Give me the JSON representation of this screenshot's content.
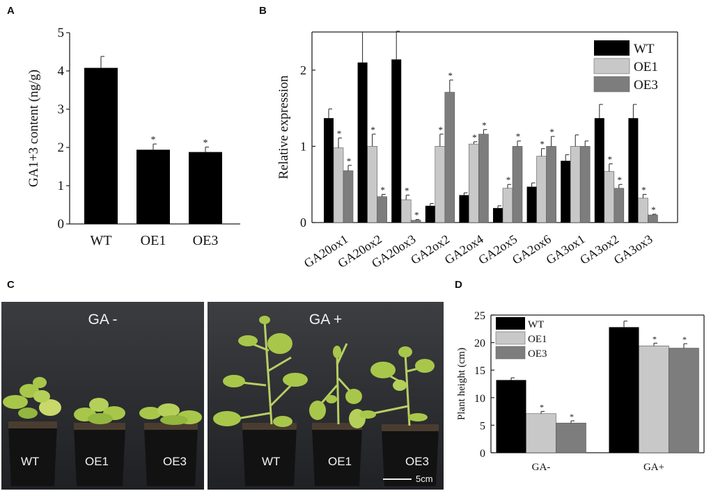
{
  "panels": {
    "a": "A",
    "b": "B",
    "c": "C",
    "d": "D"
  },
  "colors": {
    "wt": "#000000",
    "oe1": "#c8c8c8",
    "oe3": "#7d7d7d"
  },
  "significance_mark": "*",
  "chart_data": [
    {
      "id": "A",
      "type": "bar",
      "title": "",
      "xlabel": "",
      "ylabel": "GA1+3 content (ng/g)",
      "ylim": [
        0,
        5
      ],
      "yticks": [
        0,
        1,
        2,
        3,
        4,
        5
      ],
      "categories": [
        "WT",
        "OE1",
        "OE3"
      ],
      "values": [
        4.08,
        1.94,
        1.88
      ],
      "errors": [
        0.3,
        0.15,
        0.13
      ],
      "significant": [
        false,
        true,
        true
      ]
    },
    {
      "id": "B",
      "type": "bar",
      "title": "",
      "xlabel": "",
      "ylabel": "Relative expression",
      "ylim": [
        0,
        2.5
      ],
      "yticks": [
        0,
        1,
        2
      ],
      "legend_position": "top-right",
      "categories": [
        "GA20ox1",
        "GA20ox2",
        "GA20ox3",
        "GA2ox2",
        "GA2ox4",
        "GA2ox5",
        "GA2ox6",
        "GA3ox1",
        "GA3ox2",
        "GA3ox3"
      ],
      "series": [
        {
          "name": "WT",
          "values": [
            1.37,
            2.1,
            2.14,
            0.22,
            0.36,
            0.19,
            0.47,
            0.81,
            1.37,
            1.37
          ],
          "errors": [
            0.12,
            0.4,
            0.37,
            0.03,
            0.03,
            0.03,
            0.05,
            0.08,
            0.18,
            0.18
          ],
          "significant": [
            false,
            false,
            false,
            false,
            false,
            false,
            false,
            false,
            false,
            false
          ]
        },
        {
          "name": "OE1",
          "values": [
            0.98,
            1.0,
            0.3,
            1.0,
            1.03,
            0.45,
            0.87,
            1.0,
            0.67,
            0.32
          ],
          "errors": [
            0.13,
            0.16,
            0.06,
            0.16,
            0.03,
            0.05,
            0.1,
            0.15,
            0.1,
            0.05
          ],
          "significant": [
            true,
            true,
            true,
            true,
            true,
            true,
            true,
            false,
            true,
            true
          ]
        },
        {
          "name": "OE3",
          "values": [
            0.68,
            0.34,
            0.03,
            1.71,
            1.16,
            1.0,
            1.0,
            1.0,
            0.45,
            0.1
          ],
          "errors": [
            0.07,
            0.03,
            0.01,
            0.16,
            0.06,
            0.07,
            0.13,
            0.07,
            0.05,
            0.01
          ],
          "significant": [
            true,
            true,
            true,
            true,
            true,
            true,
            true,
            false,
            true,
            true
          ]
        }
      ]
    },
    {
      "id": "D",
      "type": "bar",
      "title": "",
      "xlabel": "",
      "ylabel": "Plant height (cm)",
      "ylim": [
        0,
        25
      ],
      "yticks": [
        0,
        5,
        10,
        15,
        20,
        25
      ],
      "legend_position": "top-left",
      "categories": [
        "GA-",
        "GA+"
      ],
      "series": [
        {
          "name": "WT",
          "values": [
            13.2,
            22.8
          ],
          "errors": [
            0.4,
            1.1
          ],
          "significant": [
            false,
            false
          ]
        },
        {
          "name": "OE1",
          "values": [
            7.1,
            19.4
          ],
          "errors": [
            0.4,
            0.5
          ],
          "significant": [
            true,
            true
          ]
        },
        {
          "name": "OE3",
          "values": [
            5.4,
            19.0
          ],
          "errors": [
            0.4,
            0.8
          ],
          "significant": [
            true,
            true
          ]
        }
      ]
    }
  ],
  "photos": {
    "left": {
      "title": "GA -",
      "labels": [
        "WT",
        "OE1",
        "OE3"
      ]
    },
    "right": {
      "title": "GA +",
      "labels": [
        "WT",
        "OE1",
        "OE3"
      ],
      "scale_bar": "5cm"
    }
  }
}
